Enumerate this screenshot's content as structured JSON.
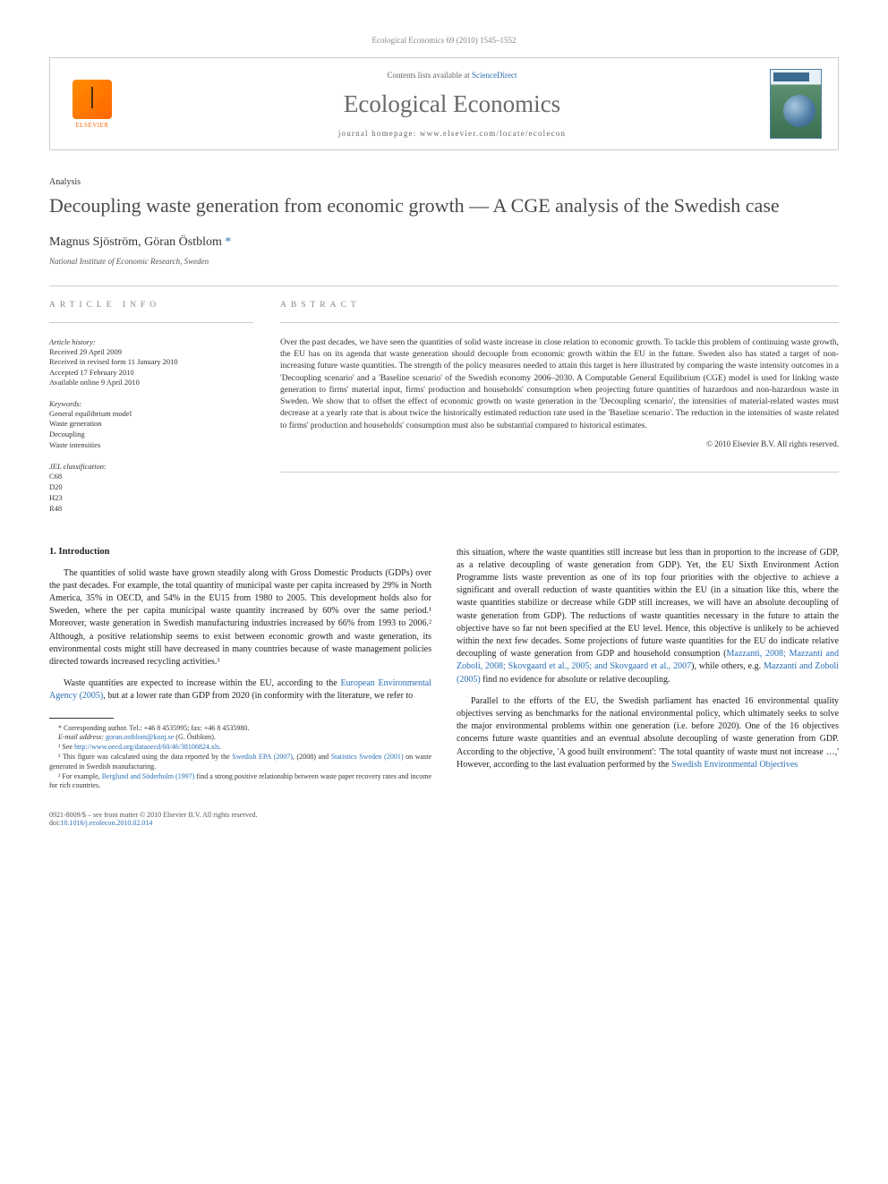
{
  "header": {
    "running": "Ecological Economics 69 (2010) 1545–1552",
    "contents_line": "Contents lists available at ",
    "contents_link": "ScienceDirect",
    "journal_name": "Ecological Economics",
    "homepage_line": "journal homepage: www.elsevier.com/locate/ecolecon",
    "elsevier_label": "ELSEVIER"
  },
  "article": {
    "section_label": "Analysis",
    "title": "Decoupling waste generation from economic growth — A CGE analysis of the Swedish case",
    "authors_html": "Magnus Sjöström, Göran Östblom",
    "corresponding_marker": "*",
    "affiliation": "National Institute of Economic Research, Sweden"
  },
  "info": {
    "heading": "article info",
    "history_head": "Article history:",
    "history": "Received 29 April 2009\nReceived in revised form 11 January 2010\nAccepted 17 February 2010\nAvailable online 9 April 2010",
    "keywords_head": "Keywords:",
    "keywords": [
      "General equilibrium model",
      "Waste generation",
      "Decoupling",
      "Waste intensities"
    ],
    "jel_head": "JEL classification:",
    "jel": [
      "C68",
      "D20",
      "H23",
      "R48"
    ]
  },
  "abstract": {
    "heading": "abstract",
    "text": "Over the past decades, we have seen the quantities of solid waste increase in close relation to economic growth. To tackle this problem of continuing waste growth, the EU has on its agenda that waste generation should decouple from economic growth within the EU in the future. Sweden also has stated a target of non-increasing future waste quantities. The strength of the policy measures needed to attain this target is here illustrated by comparing the waste intensity outcomes in a 'Decoupling scenario' and a 'Baseline scenario' of the Swedish economy 2006–2030. A Computable General Equilibrium (CGE) model is used for linking waste generation to firms' material input, firms' production and households' consumption when projecting future quantities of hazardous and non-hazardous waste in Sweden. We show that to offset the effect of economic growth on waste generation in the 'Decoupling scenario', the intensities of material-related wastes must decrease at a yearly rate that is about twice the historically estimated reduction rate used in the 'Baseline scenario'. The reduction in the intensities of waste related to firms' production and households' consumption must also be substantial compared to historical estimates.",
    "copyright": "© 2010 Elsevier B.V. All rights reserved."
  },
  "body": {
    "section_number": "1.",
    "section_title": "Introduction",
    "left": {
      "p1": "The quantities of solid waste have grown steadily along with Gross Domestic Products (GDPs) over the past decades. For example, the total quantity of municipal waste per capita increased by 29% in North America, 35% in OECD, and 54% in the EU15 from 1980 to 2005. This development holds also for Sweden, where the per capita municipal waste quantity increased by 60% over the same period.¹ Moreover, waste generation in Swedish manufacturing industries increased by 66% from 1993 to 2006.² Although, a positive relationship seems to exist between economic growth and waste generation, its environmental costs might still have decreased in many countries because of waste management policies directed towards increased recycling activities.³",
      "p2a": "Waste quantities are expected to increase within the EU, according to the ",
      "p2link": "European Environmental Agency (2005)",
      "p2b": ", but at a lower rate than GDP from 2020 (in conformity with the literature, we refer to"
    },
    "right": {
      "p1a": "this situation, where the waste quantities still increase but less than in proportion to the increase of GDP, as a relative decoupling of waste generation from GDP). Yet, the EU Sixth Environment Action Programme lists waste prevention as one of its top four priorities with the objective to achieve a significant and overall reduction of waste quantities within the EU (in a situation like this, where the waste quantities stabilize or decrease while GDP still increases, we will have an absolute decoupling of waste generation from GDP). The reductions of waste quantities necessary in the future to attain the objective have so far not been specified at the EU level. Hence, this objective is unlikely to be achieved within the next few decades. Some projections of future waste quantities for the EU do indicate relative decoupling of waste generation from GDP and household consumption (",
      "p1link1": "Mazzanti, 2008; Mazzanti and Zoboli, 2008; Skovgaard et al., 2005; and Skovgaard et al., 2007",
      "p1b": "), while others, e.g. ",
      "p1link2": "Mazzanti and Zoboli (2005)",
      "p1c": " find no evidence for absolute or relative decoupling.",
      "p2a": "Parallel to the efforts of the EU, the Swedish parliament has enacted 16 environmental quality objectives serving as benchmarks for the national environmental policy, which ultimately seeks to solve the major environmental problems within one generation (i.e. before 2020). One of the 16 objectives concerns future waste quantities and an eventual absolute decoupling of waste generation from GDP. According to the objective, 'A good built environment': 'The total quantity of waste must not increase …,' However, according to the last evaluation performed by the ",
      "p2link": "Swedish Environmental Objectives"
    }
  },
  "footnotes": {
    "corresponding": "* Corresponding author. Tel.: +46 8 4535995; fax: +46 8 4535980.",
    "email_label": "E-mail address:",
    "email_value": "goran.ostblom@konj.se",
    "email_who": " (G. Östblom).",
    "f1a": "¹ See ",
    "f1link": "http://www.oecd.org/dataoecd/60/46/38106824.xls",
    "f1b": ".",
    "f2a": "² This figure was calculated using the data reported by the ",
    "f2link1": "Swedish EPA (2007)",
    "f2b": ", (2008) and ",
    "f2link2": "Statistics Sweden (2001)",
    "f2c": " on waste generated in Swedish manufacturing.",
    "f3a": "³ For example, ",
    "f3link": "Berglund and Söderholm (1997)",
    "f3b": " find a strong positive relationship between waste paper recovery rates and income for rich countries."
  },
  "footer": {
    "left_line1": "0921-8009/$ – see front matter © 2010 Elsevier B.V. All rights reserved.",
    "doi_prefix": "doi:",
    "doi": "10.1016/j.ecolecon.2010.02.014"
  },
  "colors": {
    "link": "#2a6fb5",
    "text": "#333333",
    "muted": "#888888",
    "border": "#cccccc",
    "elsevier_orange": "#ff6600"
  },
  "typography": {
    "body_fontsize_pt": 10,
    "abstract_fontsize_pt": 9.5,
    "title_fontsize_pt": 22,
    "journal_name_fontsize_pt": 27,
    "footnote_fontsize_pt": 8
  }
}
